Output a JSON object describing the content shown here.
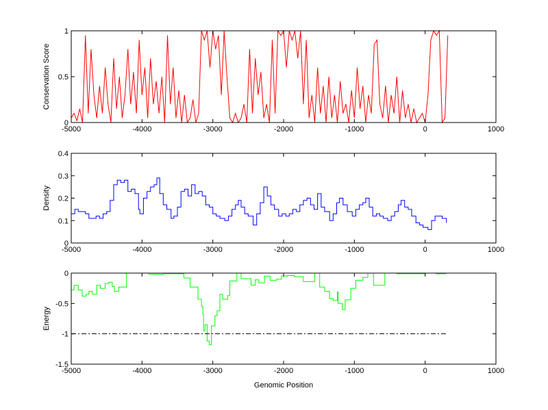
{
  "chart_data": [
    {
      "type": "line",
      "ylabel": "Conservation Score",
      "xlabel": "",
      "xlim": [
        -5000,
        1000
      ],
      "ylim": [
        0,
        1
      ],
      "xticks": [
        -5000,
        -4000,
        -3000,
        -2000,
        -1000,
        0,
        1000
      ],
      "yticks": [
        0,
        0.5,
        1
      ],
      "ytick_labels": [
        "0",
        "0.5",
        "1"
      ],
      "color": "#ff0000",
      "x_start": -5000,
      "x_step": 40,
      "values": [
        0.05,
        0.1,
        0.02,
        0.15,
        0.0,
        0.95,
        0.1,
        0.8,
        0.3,
        0.05,
        0.4,
        0.1,
        0.6,
        0.2,
        0.0,
        0.7,
        0.15,
        0.5,
        0.05,
        0.3,
        0.8,
        0.2,
        0.55,
        0.1,
        0.9,
        0.3,
        0.6,
        0.05,
        0.7,
        0.2,
        0.45,
        0.1,
        0.5,
        0.0,
        0.95,
        0.2,
        0.6,
        0.05,
        0.35,
        0.0,
        0.3,
        0.0,
        0.05,
        0.25,
        0.0,
        0.1,
        1.0,
        0.9,
        1.0,
        0.6,
        1.0,
        0.8,
        0.95,
        0.3,
        1.0,
        0.5,
        0.05,
        0.0,
        0.1,
        0.0,
        0.05,
        0.2,
        0.0,
        0.8,
        0.1,
        0.7,
        0.3,
        0.55,
        0.05,
        0.2,
        0.0,
        0.9,
        0.1,
        1.0,
        0.95,
        1.0,
        0.6,
        1.0,
        0.9,
        1.0,
        0.7,
        1.0,
        0.2,
        0.9,
        0.05,
        0.3,
        0.0,
        0.6,
        0.1,
        0.4,
        0.0,
        0.5,
        0.05,
        0.3,
        0.0,
        0.45,
        0.1,
        0.2,
        0.0,
        0.35,
        0.05,
        0.6,
        0.15,
        0.4,
        0.0,
        0.3,
        0.1,
        0.85,
        0.9,
        0.2,
        0.05,
        0.4,
        0.0,
        0.3,
        0.1,
        0.5,
        0.0,
        0.35,
        0.05,
        0.2,
        0.0,
        0.15,
        0.0,
        0.05,
        0.1,
        0.0,
        0.3,
        0.9,
        1.0,
        0.95,
        1.0,
        0.0,
        0.05,
        0.95
      ]
    },
    {
      "type": "line",
      "ylabel": "Density",
      "xlabel": "",
      "xlim": [
        -5000,
        1000
      ],
      "ylim": [
        0,
        0.4
      ],
      "xticks": [
        -5000,
        -4000,
        -3000,
        -2000,
        -1000,
        0,
        1000
      ],
      "yticks": [
        0,
        0.1,
        0.2,
        0.3,
        0.4
      ],
      "ytick_labels": [
        "0",
        "0.1",
        "0.2",
        "0.3",
        "0.4"
      ],
      "color": "#0000ff",
      "step": true,
      "x": [
        -5000,
        -4950,
        -4900,
        -4850,
        -4800,
        -4750,
        -4700,
        -4650,
        -4600,
        -4550,
        -4500,
        -4450,
        -4400,
        -4350,
        -4300,
        -4250,
        -4200,
        -4150,
        -4100,
        -4050,
        -4030,
        -3980,
        -3930,
        -3880,
        -3830,
        -3790,
        -3750,
        -3700,
        -3650,
        -3590,
        -3550,
        -3500,
        -3450,
        -3400,
        -3350,
        -3300,
        -3250,
        -3200,
        -3150,
        -3100,
        -3050,
        -3000,
        -2950,
        -2900,
        -2830,
        -2780,
        -2730,
        -2680,
        -2640,
        -2600,
        -2550,
        -2500,
        -2430,
        -2380,
        -2330,
        -2280,
        -2230,
        -2180,
        -2130,
        -2070,
        -2020,
        -1970,
        -1920,
        -1870,
        -1820,
        -1770,
        -1720,
        -1670,
        -1620,
        -1570,
        -1520,
        -1470,
        -1420,
        -1350,
        -1300,
        -1250,
        -1210,
        -1160,
        -1100,
        -1030,
        -980,
        -930,
        -880,
        -840,
        -790,
        -740,
        -690,
        -640,
        -590,
        -530,
        -480,
        -430,
        -380,
        -340,
        -290,
        -240,
        -190,
        -130,
        -80,
        -30,
        40,
        90,
        140,
        190,
        240,
        300
      ],
      "values": [
        0.13,
        0.15,
        0.14,
        0.14,
        0.13,
        0.11,
        0.11,
        0.12,
        0.11,
        0.13,
        0.14,
        0.19,
        0.26,
        0.28,
        0.27,
        0.28,
        0.23,
        0.24,
        0.22,
        0.15,
        0.13,
        0.2,
        0.23,
        0.25,
        0.26,
        0.29,
        0.22,
        0.17,
        0.15,
        0.11,
        0.12,
        0.16,
        0.23,
        0.24,
        0.21,
        0.26,
        0.22,
        0.23,
        0.21,
        0.17,
        0.16,
        0.13,
        0.12,
        0.11,
        0.1,
        0.12,
        0.15,
        0.17,
        0.19,
        0.16,
        0.13,
        0.12,
        0.08,
        0.13,
        0.18,
        0.25,
        0.21,
        0.17,
        0.15,
        0.12,
        0.13,
        0.12,
        0.13,
        0.15,
        0.14,
        0.17,
        0.19,
        0.2,
        0.17,
        0.15,
        0.22,
        0.16,
        0.14,
        0.1,
        0.13,
        0.18,
        0.2,
        0.17,
        0.14,
        0.12,
        0.15,
        0.17,
        0.18,
        0.2,
        0.16,
        0.12,
        0.13,
        0.12,
        0.11,
        0.1,
        0.12,
        0.14,
        0.17,
        0.19,
        0.16,
        0.15,
        0.12,
        0.09,
        0.08,
        0.07,
        0.06,
        0.1,
        0.12,
        0.12,
        0.11,
        0.09
      ]
    },
    {
      "type": "line",
      "ylabel": "Energy",
      "xlabel": "Genomic Position",
      "xlim": [
        -5000,
        1000
      ],
      "ylim": [
        -1.5,
        0
      ],
      "xticks": [
        -5000,
        -4000,
        -3000,
        -2000,
        -1000,
        0,
        1000
      ],
      "yticks": [
        0,
        -0.5,
        -1,
        -1.5
      ],
      "ytick_labels": [
        "0",
        "-0.5",
        "-1",
        "-1.5"
      ],
      "color": "#00ff00",
      "step": true,
      "x": [
        -5000,
        -4960,
        -4900,
        -4845,
        -4790,
        -4750,
        -4700,
        -4640,
        -4590,
        -4520,
        -4470,
        -4420,
        -4390,
        -4330,
        -4290,
        -4220,
        -4100,
        -3900,
        -3700,
        -3500,
        -3410,
        -3320,
        -3210,
        -3160,
        -3140,
        -3130,
        -3110,
        -3080,
        -3050,
        -3020,
        -2970,
        -2940,
        -2900,
        -2860,
        -2790,
        -2760,
        -2660,
        -2600,
        -2460,
        -2400,
        -2350,
        -2270,
        -2190,
        -2100,
        -2030,
        -1950,
        -1850,
        -1720,
        -1560,
        -1490,
        -1420,
        -1350,
        -1300,
        -1240,
        -1230,
        -1170,
        -1130,
        -1050,
        -980,
        -880,
        -810,
        -730,
        -640,
        -570,
        -400,
        -200,
        0,
        150,
        300
      ],
      "values": [
        -0.28,
        -0.2,
        -0.28,
        -0.38,
        -0.35,
        -0.3,
        -0.35,
        -0.2,
        -0.25,
        -0.17,
        -0.15,
        -0.22,
        -0.3,
        -0.23,
        -0.23,
        0.0,
        0.0,
        -0.02,
        -0.01,
        -0.01,
        -0.08,
        -0.23,
        -0.43,
        -0.55,
        -0.68,
        -0.95,
        -0.85,
        -1.12,
        -1.18,
        -0.87,
        -0.7,
        -0.62,
        -0.35,
        -0.43,
        -0.37,
        -0.13,
        0.0,
        -0.09,
        -0.2,
        -0.11,
        -0.16,
        -0.05,
        -0.12,
        -0.1,
        -0.05,
        -0.04,
        -0.06,
        -0.14,
        0.0,
        -0.23,
        -0.3,
        -0.42,
        -0.45,
        -0.31,
        -0.5,
        -0.6,
        -0.44,
        -0.25,
        -0.12,
        -0.07,
        0.0,
        -0.2,
        -0.2,
        0.0,
        -0.01,
        -0.01,
        0.0,
        -0.01,
        -0.01
      ],
      "reference_line": {
        "y": -1,
        "x": [
          -5000,
          300
        ],
        "style": "dash-dot",
        "color": "#000000"
      }
    }
  ]
}
